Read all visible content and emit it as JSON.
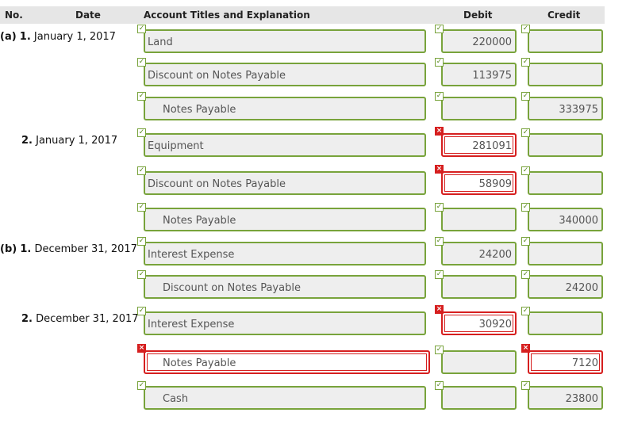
{
  "header": {
    "no": "No.",
    "date": "Date",
    "account": "Account Titles and Explanation",
    "debit": "Debit",
    "credit": "Credit"
  },
  "rows": [
    {
      "part": "(a)",
      "no": "1.",
      "date": "January 1, 2017",
      "account": "Land",
      "indent": false,
      "debit": "220000",
      "credit": "",
      "acct_status": "ok",
      "debit_status": "ok",
      "credit_status": "ok"
    },
    {
      "part": "",
      "no": "",
      "date": "",
      "account": "Discount on Notes Payable",
      "indent": false,
      "debit": "113975",
      "credit": "",
      "acct_status": "ok",
      "debit_status": "ok",
      "credit_status": "ok"
    },
    {
      "part": "",
      "no": "",
      "date": "",
      "account": "Notes Payable",
      "indent": true,
      "debit": "",
      "credit": "333975",
      "acct_status": "ok",
      "debit_status": "ok",
      "credit_status": "ok"
    },
    {
      "part": "",
      "no": "2.",
      "date": "January 1, 2017",
      "account": "Equipment",
      "indent": false,
      "debit": "281091",
      "credit": "",
      "acct_status": "ok",
      "debit_status": "bad",
      "credit_status": "ok"
    },
    {
      "part": "",
      "no": "",
      "date": "",
      "account": "Discount on Notes Payable",
      "indent": false,
      "debit": "58909",
      "credit": "",
      "acct_status": "ok",
      "debit_status": "bad",
      "credit_status": "ok"
    },
    {
      "part": "",
      "no": "",
      "date": "",
      "account": "Notes Payable",
      "indent": true,
      "debit": "",
      "credit": "340000",
      "acct_status": "ok",
      "debit_status": "ok",
      "credit_status": "ok"
    },
    {
      "part": "(b)",
      "no": "1.",
      "date": "December 31, 2017",
      "account": "Interest Expense",
      "indent": false,
      "debit": "24200",
      "credit": "",
      "acct_status": "ok",
      "debit_status": "ok",
      "credit_status": "ok"
    },
    {
      "part": "",
      "no": "",
      "date": "",
      "account": "Discount on Notes Payable",
      "indent": true,
      "debit": "",
      "credit": "24200",
      "acct_status": "ok",
      "debit_status": "ok",
      "credit_status": "ok"
    },
    {
      "part": "",
      "no": "2.",
      "date": "December 31, 2017",
      "account": "Interest Expense",
      "indent": false,
      "debit": "30920",
      "credit": "",
      "acct_status": "ok",
      "debit_status": "bad",
      "credit_status": "ok"
    },
    {
      "part": "",
      "no": "",
      "date": "",
      "account": "Notes Payable",
      "indent": true,
      "debit": "",
      "credit": "7120",
      "acct_status": "bad",
      "debit_status": "ok",
      "credit_status": "bad"
    },
    {
      "part": "",
      "no": "",
      "date": "",
      "account": "Cash",
      "indent": true,
      "debit": "",
      "credit": "23800",
      "acct_status": "ok",
      "debit_status": "ok",
      "credit_status": "ok"
    }
  ],
  "icons": {
    "ok": "check-icon",
    "bad": "x-icon"
  },
  "colors": {
    "ok_border": "#78a33b",
    "error_border": "#d61f1f",
    "header_bg": "#e6e6e6"
  }
}
